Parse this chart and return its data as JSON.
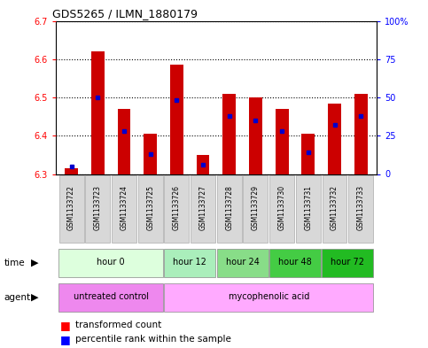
{
  "title": "GDS5265 / ILMN_1880179",
  "samples": [
    "GSM1133722",
    "GSM1133723",
    "GSM1133724",
    "GSM1133725",
    "GSM1133726",
    "GSM1133727",
    "GSM1133728",
    "GSM1133729",
    "GSM1133730",
    "GSM1133731",
    "GSM1133732",
    "GSM1133733"
  ],
  "transformed_counts": [
    6.315,
    6.62,
    6.47,
    6.405,
    6.585,
    6.35,
    6.51,
    6.5,
    6.47,
    6.405,
    6.485,
    6.51
  ],
  "percentile_ranks": [
    5,
    50,
    28,
    13,
    48,
    6,
    38,
    35,
    28,
    14,
    32,
    38
  ],
  "ylim_left": [
    6.3,
    6.7
  ],
  "ylim_right": [
    0,
    100
  ],
  "yticks_left": [
    6.3,
    6.4,
    6.5,
    6.6,
    6.7
  ],
  "yticks_right": [
    0,
    25,
    50,
    75,
    100
  ],
  "ytick_labels_right": [
    "0",
    "25",
    "50",
    "75",
    "100%"
  ],
  "bar_color": "#cc0000",
  "dot_color": "#0000cc",
  "bar_width": 0.5,
  "baseline": 6.3,
  "sample_bg_color": "#d8d8d8",
  "plot_bg": "#ffffff",
  "grid_color": "#000000",
  "time_group_data": [
    {
      "label": "hour 0",
      "start": 0,
      "end": 3,
      "color": "#ddffdd"
    },
    {
      "label": "hour 12",
      "start": 4,
      "end": 5,
      "color": "#aaeebb"
    },
    {
      "label": "hour 24",
      "start": 6,
      "end": 7,
      "color": "#88dd88"
    },
    {
      "label": "hour 48",
      "start": 8,
      "end": 9,
      "color": "#44cc44"
    },
    {
      "label": "hour 72",
      "start": 10,
      "end": 11,
      "color": "#22bb22"
    }
  ],
  "agent_group_data": [
    {
      "label": "untreated control",
      "start": 0,
      "end": 3,
      "color": "#ee88ee"
    },
    {
      "label": "mycophenolic acid",
      "start": 4,
      "end": 11,
      "color": "#ffaaff"
    }
  ],
  "legend_transformed": "transformed count",
  "legend_percentile": "percentile rank within the sample"
}
